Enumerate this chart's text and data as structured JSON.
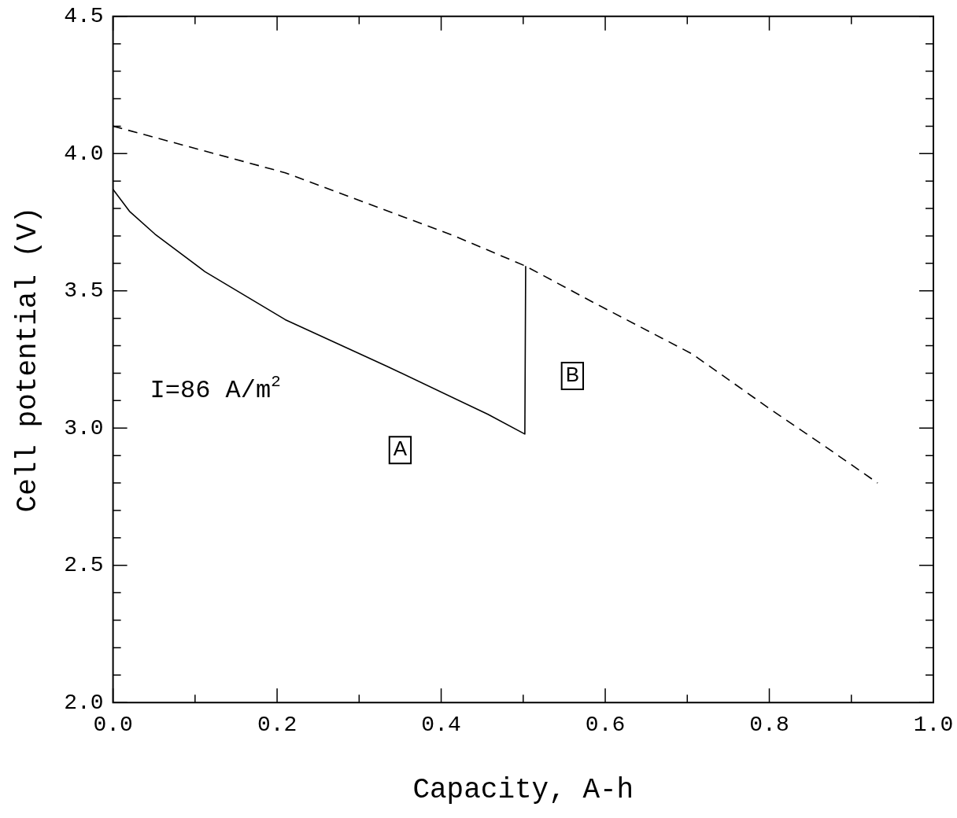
{
  "chart_data": {
    "type": "line",
    "xlabel": "Capacity, A-h",
    "ylabel": "Cell potential (V)",
    "series": [
      {
        "color": "#000000",
        "line_style": "solid",
        "x": [
          0,
          0.02,
          0.051,
          0.112,
          0.21,
          0.334,
          0.457,
          0.502,
          0.503
        ],
        "values": [
          3.87,
          3.79,
          3.707,
          3.57,
          3.395,
          3.225,
          3.05,
          2.978,
          3.59
        ]
      },
      {
        "color": "#000000",
        "line_style": "dashed",
        "x": [
          0,
          0.21,
          0.416,
          0.503,
          0.586,
          0.706,
          0.803,
          0.868,
          0.932
        ],
        "values": [
          4.1,
          3.93,
          3.7,
          3.59,
          3.457,
          3.27,
          3.065,
          2.933,
          2.8
        ]
      }
    ],
    "annotations": [
      "I=86 A/m$^{2}$",
      {
        "text": "A",
        "x": 0.35,
        "y": 2.92
      },
      {
        "text": "B",
        "x": 0.56,
        "y": 3.19
      }
    ],
    "xlim": [
      0,
      1
    ],
    "ylim": [
      2,
      4.5
    ],
    "xticks": [
      {
        "value": 0,
        "label": "0.0"
      },
      {
        "value": 0.1,
        "label": null
      },
      0.2,
      {
        "value": 0.3,
        "label": null
      },
      0.4,
      {
        "value": 0.5,
        "label": null
      },
      0.6,
      {
        "value": 0.7,
        "label": null
      },
      0.8,
      {
        "value": 0.9,
        "label": null
      },
      {
        "value": 1,
        "label": "1.0"
      }
    ],
    "yticks": [
      {
        "value": 2,
        "label": "2.0"
      },
      {
        "value": 2.1,
        "label": null
      },
      {
        "value": 2.2,
        "label": null
      },
      {
        "value": 2.3,
        "label": null
      },
      {
        "value": 2.4,
        "label": null
      },
      2.5,
      {
        "value": 2.6,
        "label": null
      },
      {
        "value": 2.7,
        "label": null
      },
      {
        "value": 2.8,
        "label": null
      },
      {
        "value": 2.9,
        "label": null
      },
      {
        "value": 3,
        "label": "3.0"
      },
      {
        "value": 3.1,
        "label": null
      },
      {
        "value": 3.2,
        "label": null
      },
      {
        "value": 3.3,
        "label": null
      },
      {
        "value": 3.4,
        "label": null
      },
      3.5,
      {
        "value": 3.6,
        "label": null
      },
      {
        "value": 3.7,
        "label": null
      },
      {
        "value": 3.8,
        "label": null
      },
      {
        "value": 3.9,
        "label": null
      },
      {
        "value": 4,
        "label": "4.0"
      },
      {
        "value": 4.1,
        "label": null
      },
      {
        "value": 4.2,
        "label": null
      },
      {
        "value": 4.3,
        "label": null
      },
      {
        "value": 4.4,
        "label": null
      },
      4.5
    ],
    "grid": false,
    "legend": false,
    "marker": "none"
  }
}
